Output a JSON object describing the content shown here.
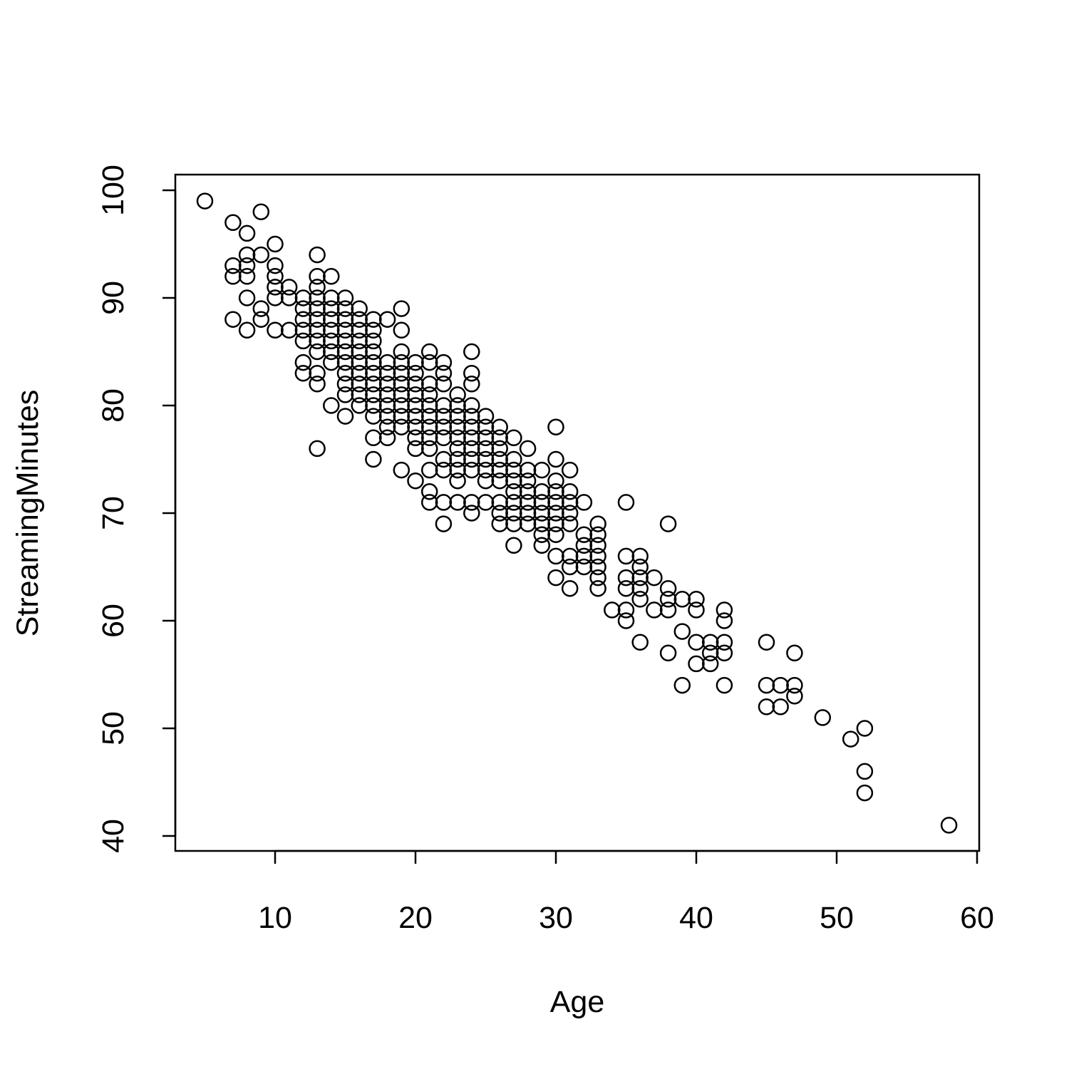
{
  "chart_data": {
    "type": "scatter",
    "title": "",
    "xlabel": "Age",
    "ylabel": "StreamingMinutes",
    "xlim": [
      3,
      60
    ],
    "ylim": [
      38.5,
      101.5
    ],
    "x_ticks": [
      10,
      20,
      30,
      40,
      50,
      60
    ],
    "y_ticks": [
      40,
      50,
      60,
      70,
      80,
      90,
      100
    ],
    "grid": false,
    "legend": "none",
    "marker": "open-circle",
    "color": "#000000",
    "points": [
      [
        5,
        99
      ],
      [
        7,
        97
      ],
      [
        7,
        93
      ],
      [
        7,
        92
      ],
      [
        7,
        88
      ],
      [
        8,
        96
      ],
      [
        8,
        94
      ],
      [
        8,
        93
      ],
      [
        8,
        92
      ],
      [
        8,
        90
      ],
      [
        8,
        87
      ],
      [
        9,
        98
      ],
      [
        9,
        94
      ],
      [
        9,
        89
      ],
      [
        9,
        88
      ],
      [
        10,
        95
      ],
      [
        10,
        93
      ],
      [
        10,
        92
      ],
      [
        10,
        91
      ],
      [
        10,
        90
      ],
      [
        10,
        87
      ],
      [
        11,
        91
      ],
      [
        11,
        90
      ],
      [
        11,
        87
      ],
      [
        12,
        90
      ],
      [
        12,
        89
      ],
      [
        12,
        88
      ],
      [
        12,
        87
      ],
      [
        12,
        86
      ],
      [
        12,
        84
      ],
      [
        12,
        83
      ],
      [
        13,
        94
      ],
      [
        13,
        92
      ],
      [
        13,
        91
      ],
      [
        13,
        90
      ],
      [
        13,
        89
      ],
      [
        13,
        88
      ],
      [
        13,
        87
      ],
      [
        13,
        86
      ],
      [
        13,
        85
      ],
      [
        13,
        83
      ],
      [
        13,
        82
      ],
      [
        13,
        76
      ],
      [
        14,
        92
      ],
      [
        14,
        90
      ],
      [
        14,
        89
      ],
      [
        14,
        88
      ],
      [
        14,
        87
      ],
      [
        14,
        86
      ],
      [
        14,
        85
      ],
      [
        14,
        84
      ],
      [
        14,
        80
      ],
      [
        15,
        90
      ],
      [
        15,
        89
      ],
      [
        15,
        88
      ],
      [
        15,
        87
      ],
      [
        15,
        86
      ],
      [
        15,
        85
      ],
      [
        15,
        84
      ],
      [
        15,
        83
      ],
      [
        15,
        82
      ],
      [
        15,
        81
      ],
      [
        15,
        79
      ],
      [
        16,
        89
      ],
      [
        16,
        88
      ],
      [
        16,
        87
      ],
      [
        16,
        86
      ],
      [
        16,
        85
      ],
      [
        16,
        84
      ],
      [
        16,
        83
      ],
      [
        16,
        82
      ],
      [
        16,
        81
      ],
      [
        16,
        80
      ],
      [
        17,
        88
      ],
      [
        17,
        87
      ],
      [
        17,
        86
      ],
      [
        17,
        85
      ],
      [
        17,
        84
      ],
      [
        17,
        83
      ],
      [
        17,
        82
      ],
      [
        17,
        81
      ],
      [
        17,
        80
      ],
      [
        17,
        79
      ],
      [
        17,
        77
      ],
      [
        17,
        75
      ],
      [
        18,
        88
      ],
      [
        18,
        84
      ],
      [
        18,
        83
      ],
      [
        18,
        82
      ],
      [
        18,
        81
      ],
      [
        18,
        80
      ],
      [
        18,
        79
      ],
      [
        18,
        78
      ],
      [
        18,
        77
      ],
      [
        19,
        89
      ],
      [
        19,
        87
      ],
      [
        19,
        85
      ],
      [
        19,
        84
      ],
      [
        19,
        83
      ],
      [
        19,
        82
      ],
      [
        19,
        81
      ],
      [
        19,
        80
      ],
      [
        19,
        79
      ],
      [
        19,
        78
      ],
      [
        19,
        74
      ],
      [
        20,
        84
      ],
      [
        20,
        83
      ],
      [
        20,
        82
      ],
      [
        20,
        81
      ],
      [
        20,
        80
      ],
      [
        20,
        79
      ],
      [
        20,
        78
      ],
      [
        20,
        77
      ],
      [
        20,
        76
      ],
      [
        20,
        73
      ],
      [
        21,
        85
      ],
      [
        21,
        84
      ],
      [
        21,
        82
      ],
      [
        21,
        81
      ],
      [
        21,
        80
      ],
      [
        21,
        79
      ],
      [
        21,
        78
      ],
      [
        21,
        77
      ],
      [
        21,
        76
      ],
      [
        21,
        74
      ],
      [
        21,
        72
      ],
      [
        21,
        71
      ],
      [
        22,
        84
      ],
      [
        22,
        83
      ],
      [
        22,
        82
      ],
      [
        22,
        80
      ],
      [
        22,
        79
      ],
      [
        22,
        78
      ],
      [
        22,
        77
      ],
      [
        22,
        75
      ],
      [
        22,
        74
      ],
      [
        22,
        71
      ],
      [
        22,
        69
      ],
      [
        23,
        81
      ],
      [
        23,
        80
      ],
      [
        23,
        79
      ],
      [
        23,
        78
      ],
      [
        23,
        77
      ],
      [
        23,
        76
      ],
      [
        23,
        75
      ],
      [
        23,
        74
      ],
      [
        23,
        73
      ],
      [
        23,
        71
      ],
      [
        24,
        85
      ],
      [
        24,
        83
      ],
      [
        24,
        82
      ],
      [
        24,
        80
      ],
      [
        24,
        79
      ],
      [
        24,
        78
      ],
      [
        24,
        77
      ],
      [
        24,
        76
      ],
      [
        24,
        75
      ],
      [
        24,
        74
      ],
      [
        24,
        71
      ],
      [
        24,
        70
      ],
      [
        25,
        79
      ],
      [
        25,
        78
      ],
      [
        25,
        77
      ],
      [
        25,
        76
      ],
      [
        25,
        75
      ],
      [
        25,
        74
      ],
      [
        25,
        73
      ],
      [
        25,
        71
      ],
      [
        26,
        78
      ],
      [
        26,
        77
      ],
      [
        26,
        76
      ],
      [
        26,
        75
      ],
      [
        26,
        74
      ],
      [
        26,
        73
      ],
      [
        26,
        71
      ],
      [
        26,
        70
      ],
      [
        26,
        69
      ],
      [
        27,
        77
      ],
      [
        27,
        75
      ],
      [
        27,
        74
      ],
      [
        27,
        73
      ],
      [
        27,
        72
      ],
      [
        27,
        71
      ],
      [
        27,
        70
      ],
      [
        27,
        69
      ],
      [
        27,
        67
      ],
      [
        28,
        76
      ],
      [
        28,
        74
      ],
      [
        28,
        73
      ],
      [
        28,
        72
      ],
      [
        28,
        71
      ],
      [
        28,
        70
      ],
      [
        28,
        69
      ],
      [
        29,
        74
      ],
      [
        29,
        72
      ],
      [
        29,
        71
      ],
      [
        29,
        70
      ],
      [
        29,
        69
      ],
      [
        29,
        68
      ],
      [
        29,
        67
      ],
      [
        30,
        78
      ],
      [
        30,
        75
      ],
      [
        30,
        73
      ],
      [
        30,
        72
      ],
      [
        30,
        71
      ],
      [
        30,
        70
      ],
      [
        30,
        69
      ],
      [
        30,
        68
      ],
      [
        30,
        66
      ],
      [
        30,
        64
      ],
      [
        31,
        74
      ],
      [
        31,
        72
      ],
      [
        31,
        71
      ],
      [
        31,
        70
      ],
      [
        31,
        69
      ],
      [
        31,
        66
      ],
      [
        31,
        65
      ],
      [
        31,
        63
      ],
      [
        32,
        71
      ],
      [
        32,
        68
      ],
      [
        32,
        67
      ],
      [
        32,
        66
      ],
      [
        32,
        65
      ],
      [
        33,
        69
      ],
      [
        33,
        68
      ],
      [
        33,
        67
      ],
      [
        33,
        66
      ],
      [
        33,
        65
      ],
      [
        33,
        64
      ],
      [
        33,
        63
      ],
      [
        34,
        61
      ],
      [
        35,
        71
      ],
      [
        35,
        66
      ],
      [
        35,
        64
      ],
      [
        35,
        63
      ],
      [
        35,
        61
      ],
      [
        35,
        60
      ],
      [
        36,
        66
      ],
      [
        36,
        65
      ],
      [
        36,
        64
      ],
      [
        36,
        63
      ],
      [
        36,
        62
      ],
      [
        36,
        58
      ],
      [
        37,
        64
      ],
      [
        37,
        61
      ],
      [
        38,
        69
      ],
      [
        38,
        63
      ],
      [
        38,
        62
      ],
      [
        38,
        61
      ],
      [
        38,
        57
      ],
      [
        39,
        62
      ],
      [
        39,
        59
      ],
      [
        39,
        54
      ],
      [
        40,
        62
      ],
      [
        40,
        61
      ],
      [
        40,
        58
      ],
      [
        40,
        56
      ],
      [
        41,
        58
      ],
      [
        41,
        57
      ],
      [
        41,
        56
      ],
      [
        42,
        61
      ],
      [
        42,
        60
      ],
      [
        42,
        58
      ],
      [
        42,
        57
      ],
      [
        42,
        54
      ],
      [
        45,
        58
      ],
      [
        45,
        54
      ],
      [
        45,
        52
      ],
      [
        46,
        54
      ],
      [
        46,
        52
      ],
      [
        47,
        57
      ],
      [
        47,
        54
      ],
      [
        47,
        53
      ],
      [
        49,
        51
      ],
      [
        51,
        49
      ],
      [
        52,
        50
      ],
      [
        52,
        46
      ],
      [
        52,
        44
      ],
      [
        58,
        41
      ]
    ]
  }
}
